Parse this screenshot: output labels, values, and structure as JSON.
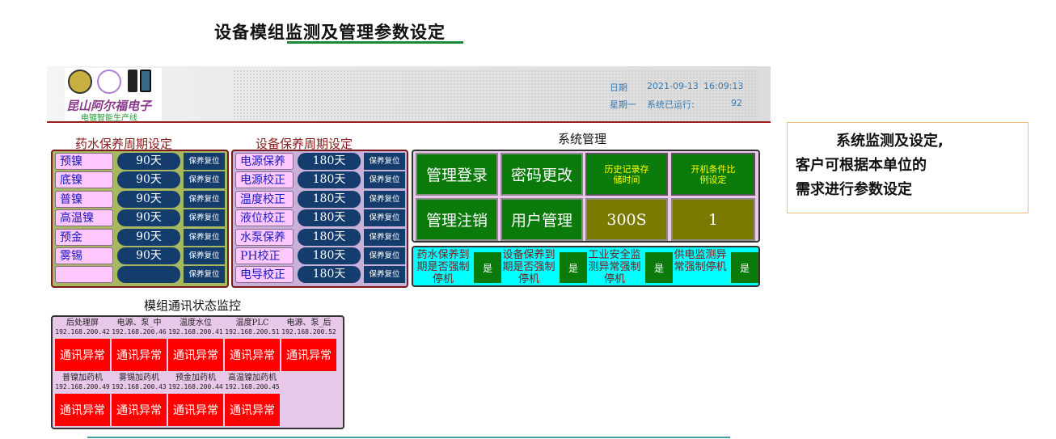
{
  "page_title": "设备模组监测及管理参数设定",
  "header": {
    "logo_text": "昆山阿尔福电子",
    "logo_sub": "电镀智能生产线",
    "date_label": "日期",
    "date": "2021-09-13",
    "time": "16:09:13",
    "weekday": "星期一",
    "runtime_label": "系统已运行:",
    "runtime": "92"
  },
  "chem": {
    "title": "药水保养周期设定",
    "reset_label": "保养复位",
    "rows": [
      {
        "name": "预镍",
        "value": "90天"
      },
      {
        "name": "底镍",
        "value": "90天"
      },
      {
        "name": "普镍",
        "value": "90天"
      },
      {
        "name": "高温镍",
        "value": "90天"
      },
      {
        "name": "预金",
        "value": "90天"
      },
      {
        "name": "雾锡",
        "value": "90天"
      },
      {
        "name": "",
        "value": ""
      }
    ]
  },
  "equip": {
    "title": "设备保养周期设定",
    "reset_label": "保养复位",
    "rows": [
      {
        "name": "电源保养",
        "value": "180天"
      },
      {
        "name": "电源校正",
        "value": "180天"
      },
      {
        "name": "温度校正",
        "value": "180天"
      },
      {
        "name": "液位校正",
        "value": "180天"
      },
      {
        "name": "水泵保养",
        "value": "180天"
      },
      {
        "name": "PH校正",
        "value": "180天"
      },
      {
        "name": "电导校正",
        "value": "180天"
      }
    ]
  },
  "system": {
    "title": "系统管理",
    "login": "管理登录",
    "password": "密码更改",
    "history_label": "历史记录存储时间",
    "ratio_label": "开机条件比例设定",
    "logout": "管理注销",
    "users": "用户管理",
    "history_value": "300S",
    "ratio_value": "1",
    "stops": [
      {
        "label": "药水保养到期是否强制停机",
        "value": "是"
      },
      {
        "label": "设备保养到期是否强制停机",
        "value": "是"
      },
      {
        "label": "工业安全监测异常强制停机",
        "value": "是"
      },
      {
        "label": "供电监测异常强制停机",
        "value": "是"
      }
    ]
  },
  "comm": {
    "title": "模组通讯状态监控",
    "modules": [
      {
        "name": "后处理屏",
        "ip": "192.168.200.42",
        "status": "通讯异常"
      },
      {
        "name": "电源、泵_中",
        "ip": "192.168.200.46",
        "status": "通讯异常"
      },
      {
        "name": "温度水位",
        "ip": "192.168.200.41",
        "status": "通讯异常"
      },
      {
        "name": "温度PLC",
        "ip": "192.168.200.51",
        "status": "通讯异常"
      },
      {
        "name": "电源、泵_后",
        "ip": "192.168.200.52",
        "status": "通讯异常"
      },
      {
        "name": "普镍加药机",
        "ip": "192.168.200.49",
        "status": "通讯异常"
      },
      {
        "name": "雾锡加药机",
        "ip": "192.168.200.43",
        "status": "通讯异常"
      },
      {
        "name": "预金加药机",
        "ip": "192.168.200.44",
        "status": "通讯异常"
      },
      {
        "name": "高温镍加药机",
        "ip": "192.168.200.45",
        "status": "通讯异常"
      }
    ]
  },
  "note": {
    "line1": "系统监测及设定,",
    "line2": "客户可根据本单位的",
    "line3": "需求进行参数设定"
  }
}
